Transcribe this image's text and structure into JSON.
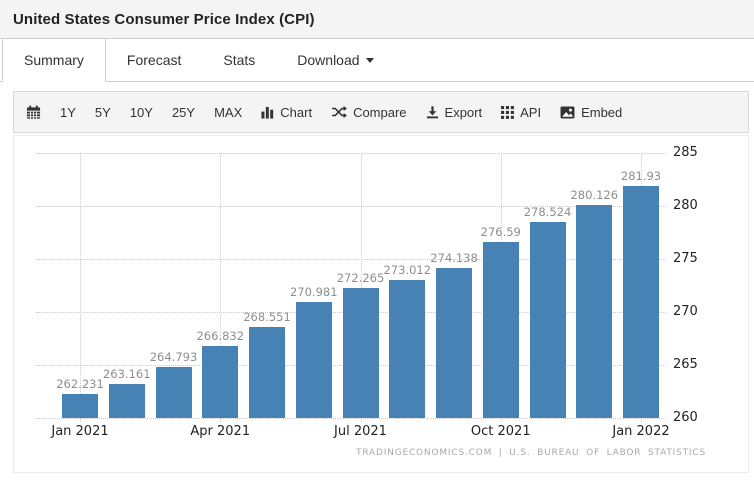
{
  "header": {
    "title": "United States Consumer Price Index (CPI)"
  },
  "tabs": {
    "items": [
      {
        "name": "summary",
        "label": "Summary",
        "active": true,
        "caret": false
      },
      {
        "name": "forecast",
        "label": "Forecast",
        "active": false,
        "caret": false
      },
      {
        "name": "stats",
        "label": "Stats",
        "active": false,
        "caret": false
      },
      {
        "name": "download",
        "label": "Download",
        "active": false,
        "caret": true
      }
    ]
  },
  "toolbar": {
    "items": [
      {
        "name": "calendar",
        "icon": "calendar-icon",
        "label": ""
      },
      {
        "name": "range-1y",
        "icon": "",
        "label": "1Y"
      },
      {
        "name": "range-5y",
        "icon": "",
        "label": "5Y"
      },
      {
        "name": "range-10y",
        "icon": "",
        "label": "10Y"
      },
      {
        "name": "range-25y",
        "icon": "",
        "label": "25Y"
      },
      {
        "name": "range-max",
        "icon": "",
        "label": "MAX"
      },
      {
        "name": "chart",
        "icon": "bar-chart-icon",
        "label": "Chart"
      },
      {
        "name": "compare",
        "icon": "shuffle-icon",
        "label": "Compare"
      },
      {
        "name": "export",
        "icon": "download-icon",
        "label": "Export"
      },
      {
        "name": "api",
        "icon": "grid-icon",
        "label": "API"
      },
      {
        "name": "embed",
        "icon": "image-icon",
        "label": "Embed"
      }
    ]
  },
  "chart_data": {
    "type": "bar",
    "title": "United States Consumer Price Index (CPI)",
    "categories": [
      "Jan 2021",
      "Feb 2021",
      "Mar 2021",
      "Apr 2021",
      "May 2021",
      "Jun 2021",
      "Jul 2021",
      "Aug 2021",
      "Sep 2021",
      "Oct 2021",
      "Nov 2021",
      "Dec 2021",
      "Jan 2022"
    ],
    "values": [
      262.231,
      263.161,
      264.793,
      266.832,
      268.551,
      270.981,
      272.265,
      273.012,
      274.138,
      276.59,
      278.524,
      280.126,
      281.93
    ],
    "value_labels": [
      "262.231",
      "263.161",
      "264.793",
      "266.832",
      "268.551",
      "270.981",
      "272.265",
      "273.012",
      "274.138",
      "276.59",
      "278.524",
      "280.126",
      "281.93"
    ],
    "x_tick_labels": [
      "Jan 2021",
      "Apr 2021",
      "Jul 2021",
      "Oct 2021",
      "Jan 2022"
    ],
    "x_tick_indices": [
      0,
      3,
      6,
      9,
      12
    ],
    "y_ticks": [
      260,
      265,
      270,
      275,
      280,
      285
    ],
    "ylim": [
      260,
      285
    ],
    "grid": true,
    "legend": "none",
    "bar_color": "#4682b4",
    "xlabel": "",
    "ylabel": ""
  },
  "attribution": "TRADINGECONOMICS.COM | U.S. BUREAU OF LABOR STATISTICS",
  "colors": {
    "bar": "#4682b4",
    "grid": "#cccccc",
    "value_label": "#8e8e8e",
    "axis_label": "#222222",
    "attribution": "#a8a8a8",
    "header_bg": "#f4f4f4",
    "toolbar_bg": "#f4f4f4",
    "border": "#cccccc",
    "card_border": "#ececec",
    "text": "#333333"
  }
}
